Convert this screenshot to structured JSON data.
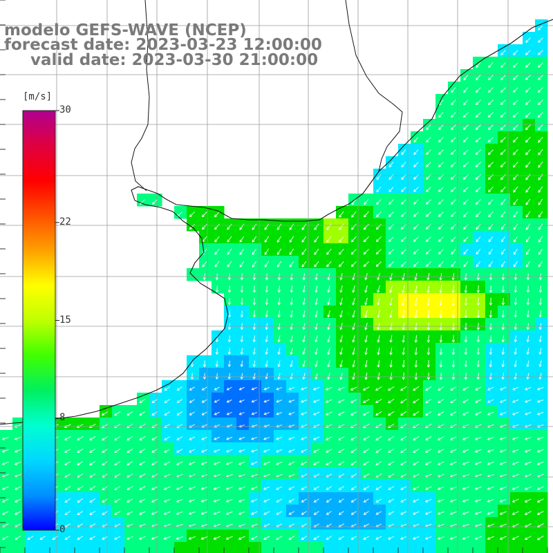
{
  "title": {
    "line1": "modelo GEFS-WAVE (NCEP)",
    "line2": "forecast date: 2023-03-23 12:00:00",
    "line3": "valid date: 2023-03-30 21:00:00"
  },
  "colorbar": {
    "units": "[m/s]",
    "ticks": [
      {
        "label": "30",
        "value": 30
      },
      {
        "label": "22",
        "value": 22
      },
      {
        "label": "15",
        "value": 15
      },
      {
        "label": "8",
        "value": 8
      },
      {
        "label": "0",
        "value": 0
      }
    ],
    "colors": [
      "#0000ff",
      "#0070ff",
      "#00b0ff",
      "#00e8ff",
      "#00ff80",
      "#00e000",
      "#a0ff00",
      "#ffff00",
      "#ffa000",
      "#ff3000",
      "#ff0000",
      "#c00080"
    ]
  },
  "map": {
    "field": "wind speed with direction arrows",
    "land_color": "#ffffff",
    "grid_color": "#9a9a9a",
    "arrow_color": "#ffffff"
  }
}
